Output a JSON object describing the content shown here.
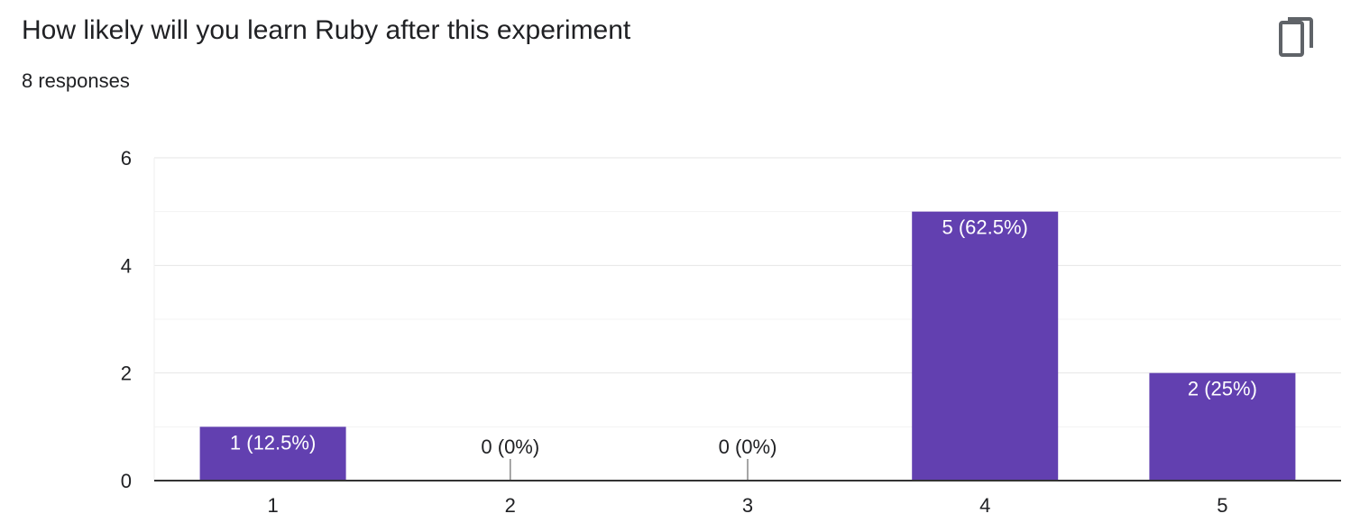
{
  "question": {
    "title": "How likely will you learn Ruby after this experiment",
    "responses_label": "8 responses"
  },
  "toolbar": {
    "copy_icon": "copy-icon"
  },
  "colors": {
    "bar": "#6240b0",
    "bar_label_inside": "#ffffff",
    "bar_label_outside": "#202124",
    "gridline": "#ececec",
    "axis": "#333333"
  },
  "chart_data": {
    "type": "bar",
    "categories": [
      "1",
      "2",
      "3",
      "4",
      "5"
    ],
    "values": [
      1,
      0,
      0,
      5,
      2
    ],
    "data_labels": [
      "1 (12.5%)",
      "0 (0%)",
      "0 (0%)",
      "5 (62.5%)",
      "2 (25%)"
    ],
    "y_ticks": [
      "0",
      "2",
      "4",
      "6"
    ],
    "ylim": [
      0,
      6
    ],
    "grid": true,
    "title": "How likely will you learn Ruby after this experiment",
    "xlabel": "",
    "ylabel": ""
  }
}
